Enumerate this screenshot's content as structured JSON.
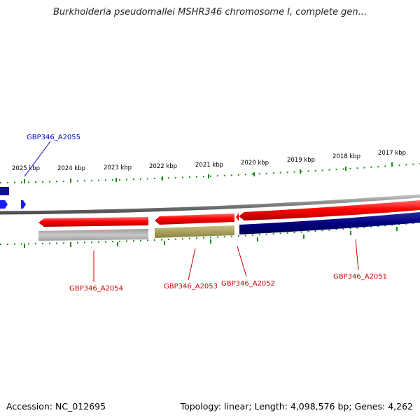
{
  "title": "Burkholderia pseudomallei MSHR346 chromosome I, complete gen...",
  "colors": {
    "forward_gene": "#ff0000",
    "reverse_gene": "#000080",
    "blue_gene": "#1a1aff",
    "backbone": "#888888",
    "grey_bar": "#b4b4b4",
    "olive_bar": "#a8a060",
    "tick": "#1a8a1a",
    "red_label": "#cc0000",
    "blue_label": "#0000cc"
  },
  "kbp_labels": [
    "2025 kbp",
    "2024 kbp",
    "2023 kbp",
    "2022 kbp",
    "2021 kbp",
    "2020 kbp",
    "2019 kbp",
    "2018 kbp",
    "2017 kbp"
  ],
  "gene_labels": {
    "a2055": "GBP346_A2055",
    "a2054": "GBP346_A2054",
    "a2053": "GBP346_A2053",
    "a2052": "GBP346_A2052",
    "a2051": "GBP346_A2051"
  },
  "footer": {
    "accession": "Accession: NC_012695",
    "topology": "Topology: linear; Length: 4,098,576 bp; Genes: 4,262"
  }
}
